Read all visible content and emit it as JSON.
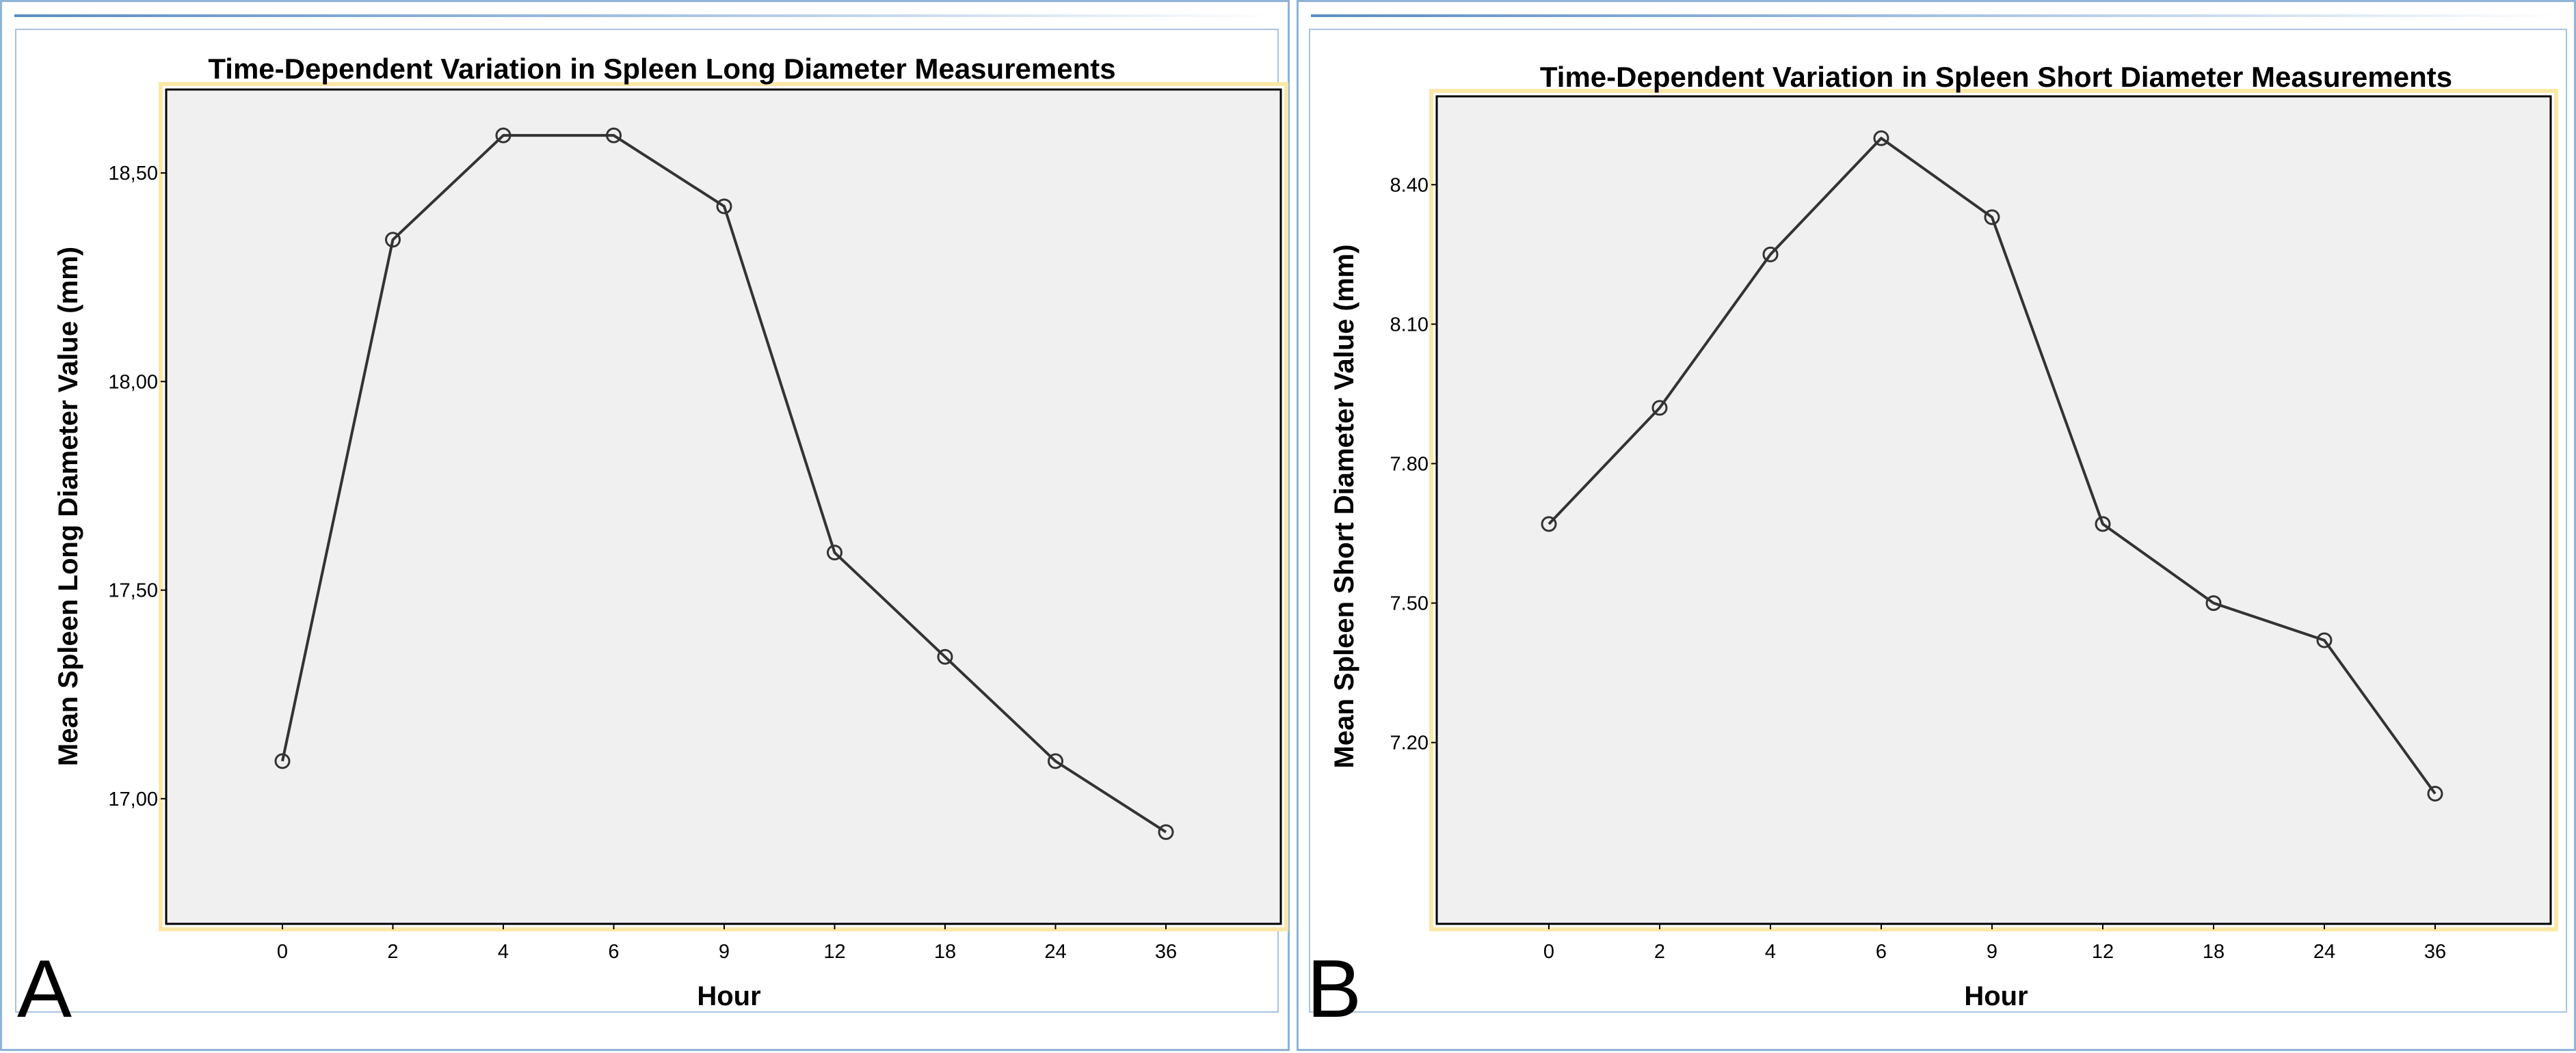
{
  "figure": {
    "panels": [
      {
        "letter": "A"
      },
      {
        "letter": "B"
      }
    ]
  },
  "chart_data": [
    {
      "type": "line",
      "title": "Time-Dependent Variation in Spleen Long Diameter Measurements",
      "xlabel": "Hour",
      "ylabel": "Mean Spleen Long Diameter Value (mm)",
      "categories": [
        "0",
        "2",
        "4",
        "6",
        "9",
        "12",
        "18",
        "24",
        "36"
      ],
      "series": [
        {
          "name": "Mean Spleen Long Diameter",
          "values": [
            17.09,
            18.34,
            18.59,
            18.59,
            18.42,
            17.59,
            17.34,
            17.09,
            16.92
          ]
        }
      ],
      "yticks": [
        17.0,
        17.5,
        18.0,
        18.5
      ],
      "ytick_labels": [
        "17,00",
        "17,50",
        "18,00",
        "18,50"
      ],
      "ylim": [
        16.7,
        18.7
      ],
      "marker": "open-circle",
      "line_color": "#333333",
      "plot_background": "#f0f0f0",
      "frame_color": "#fbe8a8",
      "panel_letter": "A"
    },
    {
      "type": "line",
      "title": "Time-Dependent Variation in Spleen Short Diameter Measurements",
      "xlabel": "Hour",
      "ylabel": "Mean Spleen Short Diameter Value (mm)",
      "categories": [
        "0",
        "2",
        "4",
        "6",
        "9",
        "12",
        "18",
        "24",
        "36"
      ],
      "series": [
        {
          "name": "Mean Spleen Short Diameter",
          "values": [
            7.67,
            7.92,
            8.25,
            8.5,
            8.33,
            7.67,
            7.5,
            7.42,
            7.09
          ]
        }
      ],
      "yticks": [
        7.2,
        7.5,
        7.8,
        8.1,
        8.4
      ],
      "ytick_labels": [
        "7.20",
        "7.50",
        "7.80",
        "8.10",
        "8.40"
      ],
      "ylim": [
        6.81,
        8.59
      ],
      "marker": "open-circle",
      "line_color": "#333333",
      "plot_background": "#f0f0f0",
      "frame_color": "#fbe8a8",
      "panel_letter": "B"
    }
  ]
}
